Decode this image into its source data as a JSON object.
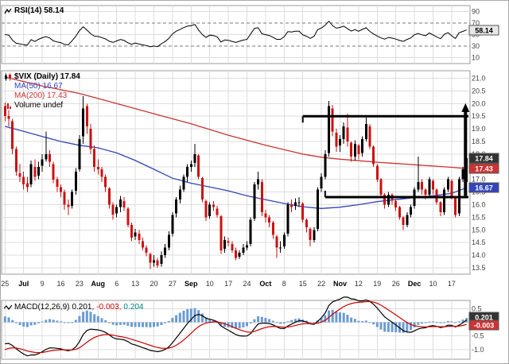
{
  "legends": {
    "rsi": {
      "text": "RSI(14) 58.14"
    },
    "price": {
      "title": "$VIX (Daily) 17.84",
      "ma50": "MA(50) 16.67",
      "ma200": "MA(200) 17.43",
      "volume": "Volume undef"
    },
    "macd": {
      "label": "MACD(12,26,9)",
      "v1": "0.201,",
      "v2": "-0.003,",
      "v3": "0.204"
    }
  },
  "colors": {
    "up": "#000000",
    "down": "#cc1111",
    "ma50": "#3344bb",
    "ma200": "#cc3333",
    "rsi": "#000000",
    "macd_line": "#000000",
    "signal_line": "#cc0000",
    "histogram": "#6b9bd2",
    "grid": "#dddddd",
    "annotation": "#000000",
    "hist_value_text": "#008080"
  },
  "x_axis": {
    "tick_step": 5,
    "labels": [
      "25",
      "Jul",
      "9",
      "16",
      "23",
      "Aug",
      "6",
      "13",
      "20",
      "27",
      "Sep",
      "10",
      "17",
      "24",
      "Oct",
      "8",
      "15",
      "22",
      "Nov",
      "12",
      "19",
      "26",
      "Dec",
      "10",
      "17"
    ]
  },
  "chart_data": [
    {
      "type": "line",
      "name": "rsi",
      "title": "RSI(14)",
      "period": 14,
      "last_value": 58.14,
      "ylim": [
        0,
        100
      ],
      "yticks": [
        "90",
        "70",
        "50",
        "30",
        "10"
      ],
      "overbought": 70,
      "oversold": 30,
      "last_value_box": {
        "text": "58.14",
        "value": 58.14
      }
    },
    {
      "type": "candlestick",
      "name": "price",
      "symbol": "$VIX",
      "timeframe": "Daily",
      "last_close": 17.84,
      "ma50_last": 16.67,
      "ma200_last": 17.43,
      "ylim": [
        13.25,
        21.3
      ],
      "yticks": [
        "21.0",
        "20.5",
        "20.0",
        "19.5",
        "19.0",
        "18.5",
        "18.0",
        "17.5",
        "17.0",
        "16.5",
        "16.0",
        "15.5",
        "15.0",
        "14.5",
        "14.0",
        "13.5"
      ],
      "ohlc": [
        [
          19.9,
          20.05,
          19.3,
          19.5
        ],
        [
          19.5,
          19.75,
          19.1,
          19.4
        ],
        [
          19.3,
          19.4,
          18.0,
          18.2
        ],
        [
          18.2,
          18.3,
          17.15,
          17.3
        ],
        [
          17.25,
          17.6,
          16.9,
          17.1
        ],
        [
          17.1,
          17.3,
          16.6,
          16.8
        ],
        [
          16.85,
          17.1,
          16.5,
          16.7
        ],
        [
          16.8,
          17.75,
          16.7,
          17.6
        ],
        [
          17.5,
          17.8,
          16.95,
          17.1
        ],
        [
          17.15,
          17.7,
          17.0,
          17.5
        ],
        [
          17.55,
          18.0,
          17.3,
          17.8
        ],
        [
          17.8,
          18.9,
          17.7,
          18.0
        ],
        [
          18.0,
          18.15,
          17.5,
          17.7
        ],
        [
          17.6,
          17.7,
          16.85,
          17.0
        ],
        [
          17.0,
          17.1,
          16.5,
          16.7
        ],
        [
          16.7,
          16.8,
          16.3,
          16.5
        ],
        [
          16.5,
          16.6,
          15.8,
          16.0
        ],
        [
          16.0,
          16.2,
          15.6,
          15.9
        ],
        [
          15.95,
          16.6,
          15.85,
          16.5
        ],
        [
          16.55,
          17.45,
          16.4,
          17.3
        ],
        [
          17.4,
          18.75,
          17.3,
          18.6
        ],
        [
          18.7,
          20.3,
          18.4,
          19.8
        ],
        [
          19.9,
          20.0,
          18.8,
          19.1
        ],
        [
          19.0,
          19.2,
          18.0,
          18.2
        ],
        [
          18.2,
          18.35,
          17.3,
          17.5
        ],
        [
          17.5,
          17.8,
          17.2,
          17.4
        ],
        [
          17.4,
          17.5,
          16.9,
          17.1
        ],
        [
          17.1,
          17.2,
          16.5,
          16.7
        ],
        [
          16.65,
          16.7,
          15.85,
          16.0
        ],
        [
          16.0,
          16.1,
          15.4,
          15.6
        ],
        [
          15.65,
          16.0,
          15.5,
          15.9
        ],
        [
          15.9,
          16.35,
          15.7,
          16.2
        ],
        [
          16.15,
          16.3,
          15.75,
          15.9
        ],
        [
          15.85,
          15.9,
          15.1,
          15.2
        ],
        [
          15.2,
          15.3,
          14.55,
          14.7
        ],
        [
          14.75,
          15.05,
          14.6,
          14.9
        ],
        [
          14.85,
          15.0,
          14.45,
          14.6
        ],
        [
          14.55,
          14.7,
          14.2,
          14.3
        ],
        [
          14.3,
          14.4,
          13.95,
          14.1
        ],
        [
          14.05,
          14.1,
          13.45,
          13.7
        ],
        [
          13.7,
          14.0,
          13.55,
          13.8
        ],
        [
          13.8,
          13.9,
          13.5,
          13.6
        ],
        [
          13.65,
          14.15,
          13.55,
          14.0
        ],
        [
          14.0,
          14.45,
          13.9,
          14.3
        ],
        [
          14.3,
          14.95,
          14.2,
          14.8
        ],
        [
          14.85,
          15.7,
          14.75,
          15.6
        ],
        [
          15.65,
          16.3,
          15.5,
          16.2
        ],
        [
          16.2,
          16.75,
          16.05,
          16.6
        ],
        [
          16.6,
          17.2,
          16.5,
          17.1
        ],
        [
          17.1,
          17.6,
          16.9,
          17.5
        ],
        [
          17.5,
          17.75,
          17.3,
          17.6
        ],
        [
          17.65,
          18.4,
          17.5,
          18.0
        ],
        [
          17.95,
          18.0,
          17.0,
          17.1
        ],
        [
          17.05,
          17.1,
          16.1,
          16.2
        ],
        [
          16.15,
          16.2,
          15.35,
          15.5
        ],
        [
          15.55,
          16.1,
          15.45,
          16.0
        ],
        [
          16.0,
          16.15,
          15.75,
          15.9
        ],
        [
          15.85,
          15.95,
          15.5,
          15.6
        ],
        [
          15.55,
          15.6,
          14.05,
          14.2
        ],
        [
          14.25,
          14.75,
          14.1,
          14.6
        ],
        [
          14.55,
          14.7,
          14.35,
          14.5
        ],
        [
          14.45,
          14.55,
          14.1,
          14.2
        ],
        [
          14.2,
          14.3,
          13.8,
          13.9
        ],
        [
          13.95,
          14.2,
          13.85,
          14.1
        ],
        [
          14.1,
          14.45,
          14.0,
          14.3
        ],
        [
          14.3,
          14.55,
          14.2,
          14.4
        ],
        [
          14.45,
          15.5,
          14.35,
          15.4
        ],
        [
          15.45,
          16.9,
          15.35,
          16.8
        ],
        [
          16.8,
          17.3,
          16.6,
          17.0
        ],
        [
          16.9,
          17.0,
          15.55,
          15.7
        ],
        [
          15.65,
          15.8,
          15.3,
          15.5
        ],
        [
          15.5,
          15.6,
          15.1,
          15.3
        ],
        [
          15.3,
          15.35,
          14.65,
          14.8
        ],
        [
          14.75,
          14.8,
          13.9,
          14.3
        ],
        [
          14.3,
          14.55,
          14.1,
          14.3
        ],
        [
          14.35,
          14.9,
          14.25,
          14.8
        ],
        [
          14.85,
          16.1,
          14.75,
          16.0
        ],
        [
          16.0,
          16.2,
          15.7,
          15.9
        ],
        [
          15.95,
          16.25,
          15.8,
          16.1
        ],
        [
          16.1,
          16.3,
          15.9,
          16.1
        ],
        [
          16.05,
          16.1,
          15.3,
          15.4
        ],
        [
          15.4,
          15.45,
          14.9,
          15.1
        ],
        [
          15.05,
          15.1,
          14.35,
          14.6
        ],
        [
          14.6,
          15.1,
          14.5,
          15.0
        ],
        [
          15.05,
          16.7,
          14.95,
          16.6
        ],
        [
          16.65,
          17.25,
          16.5,
          17.1
        ],
        [
          17.1,
          18.15,
          17.0,
          18.0
        ],
        [
          18.05,
          20.1,
          17.9,
          19.9
        ],
        [
          19.8,
          19.95,
          18.7,
          18.9
        ],
        [
          18.85,
          19.0,
          18.1,
          18.3
        ],
        [
          18.35,
          18.75,
          18.1,
          18.6
        ],
        [
          18.6,
          19.25,
          18.4,
          19.1
        ],
        [
          19.05,
          19.6,
          18.3,
          18.5
        ],
        [
          18.45,
          18.5,
          17.7,
          17.9
        ],
        [
          17.9,
          18.55,
          17.75,
          18.4
        ],
        [
          18.35,
          18.4,
          17.8,
          18.0
        ],
        [
          18.05,
          18.7,
          17.9,
          18.6
        ],
        [
          18.6,
          19.45,
          18.5,
          19.2
        ],
        [
          19.1,
          19.2,
          18.2,
          18.3
        ],
        [
          18.3,
          18.35,
          17.5,
          17.6
        ],
        [
          17.55,
          17.6,
          16.9,
          17.0
        ],
        [
          17.0,
          17.05,
          16.3,
          16.4
        ],
        [
          16.4,
          16.45,
          15.85,
          16.0
        ],
        [
          16.0,
          16.5,
          15.9,
          16.4
        ],
        [
          16.4,
          16.45,
          16.0,
          16.2
        ],
        [
          16.15,
          16.2,
          15.75,
          15.9
        ],
        [
          15.9,
          15.95,
          15.4,
          15.5
        ],
        [
          15.5,
          15.55,
          15.0,
          15.2
        ],
        [
          15.2,
          15.7,
          15.1,
          15.6
        ],
        [
          15.6,
          16.0,
          15.5,
          15.9
        ],
        [
          15.95,
          16.7,
          15.85,
          16.6
        ],
        [
          16.6,
          17.9,
          16.5,
          16.9
        ],
        [
          16.9,
          17.0,
          16.4,
          16.6
        ],
        [
          16.6,
          16.65,
          16.2,
          16.4
        ],
        [
          16.4,
          17.1,
          16.3,
          17.0
        ],
        [
          16.95,
          17.0,
          16.4,
          16.6
        ],
        [
          16.6,
          16.65,
          16.0,
          16.1
        ],
        [
          16.1,
          16.15,
          15.55,
          15.7
        ],
        [
          15.7,
          16.7,
          15.6,
          16.6
        ],
        [
          16.6,
          17.1,
          16.5,
          17.0
        ],
        [
          16.95,
          17.0,
          16.2,
          16.3
        ],
        [
          16.3,
          16.35,
          15.5,
          15.6
        ],
        [
          15.65,
          17.1,
          15.55,
          17.0
        ],
        [
          17.0,
          17.5,
          16.9,
          17.4
        ],
        [
          16.9,
          19.5,
          16.8,
          17.84
        ]
      ],
      "ma50_points": [
        [
          0,
          19.1
        ],
        [
          5,
          18.9
        ],
        [
          10,
          18.7
        ],
        [
          15,
          18.5
        ],
        [
          20,
          18.35
        ],
        [
          25,
          18.25
        ],
        [
          30,
          18.05
        ],
        [
          35,
          17.75
        ],
        [
          40,
          17.4
        ],
        [
          45,
          17.05
        ],
        [
          50,
          16.85
        ],
        [
          55,
          16.7
        ],
        [
          60,
          16.55
        ],
        [
          65,
          16.35
        ],
        [
          70,
          16.2
        ],
        [
          75,
          16.05
        ],
        [
          80,
          15.92
        ],
        [
          85,
          15.85
        ],
        [
          90,
          15.9
        ],
        [
          95,
          16.0
        ],
        [
          100,
          16.12
        ],
        [
          105,
          16.2
        ],
        [
          110,
          16.28
        ],
        [
          115,
          16.35
        ],
        [
          120,
          16.45
        ],
        [
          124,
          16.67
        ]
      ],
      "ma200_points": [
        [
          0,
          21.05
        ],
        [
          10,
          20.7
        ],
        [
          20,
          20.4
        ],
        [
          30,
          20.0
        ],
        [
          40,
          19.6
        ],
        [
          50,
          19.2
        ],
        [
          60,
          18.75
        ],
        [
          70,
          18.35
        ],
        [
          80,
          18.0
        ],
        [
          85,
          17.88
        ],
        [
          90,
          17.8
        ],
        [
          95,
          17.74
        ],
        [
          100,
          17.68
        ],
        [
          105,
          17.63
        ],
        [
          110,
          17.58
        ],
        [
          115,
          17.53
        ],
        [
          120,
          17.48
        ],
        [
          124,
          17.43
        ]
      ],
      "annotations": {
        "resistance": {
          "price": 19.5,
          "start_index": 80
        },
        "support": {
          "price": 16.3,
          "start_index": 86
        },
        "breakout_arrow": {
          "index": 123.7,
          "from_price": 16.35,
          "to_price": 19.95
        }
      },
      "last_value_boxes": [
        {
          "text": "17.84",
          "value": 17.84,
          "bg": "#333333"
        },
        {
          "text": "17.43",
          "value": 17.43,
          "bg": "#cc3333"
        },
        {
          "text": "16.67",
          "value": 16.67,
          "bg": "#3344bb"
        }
      ]
    },
    {
      "type": "macd",
      "name": "macd",
      "fast": 12,
      "slow": 26,
      "signal": 9,
      "last_macd": 0.201,
      "last_signal": -0.003,
      "last_hist": 0.204,
      "ylim": [
        -1.35,
        0.8
      ],
      "yticks": [
        "0.5",
        "0.0",
        "-0.5",
        "-1.0"
      ],
      "last_value_boxes": [
        {
          "text": "0.201",
          "value": 0.201,
          "bg": "#333333"
        },
        {
          "text": "-0.003",
          "value": -0.003,
          "bg": "#cc3333"
        }
      ]
    }
  ]
}
